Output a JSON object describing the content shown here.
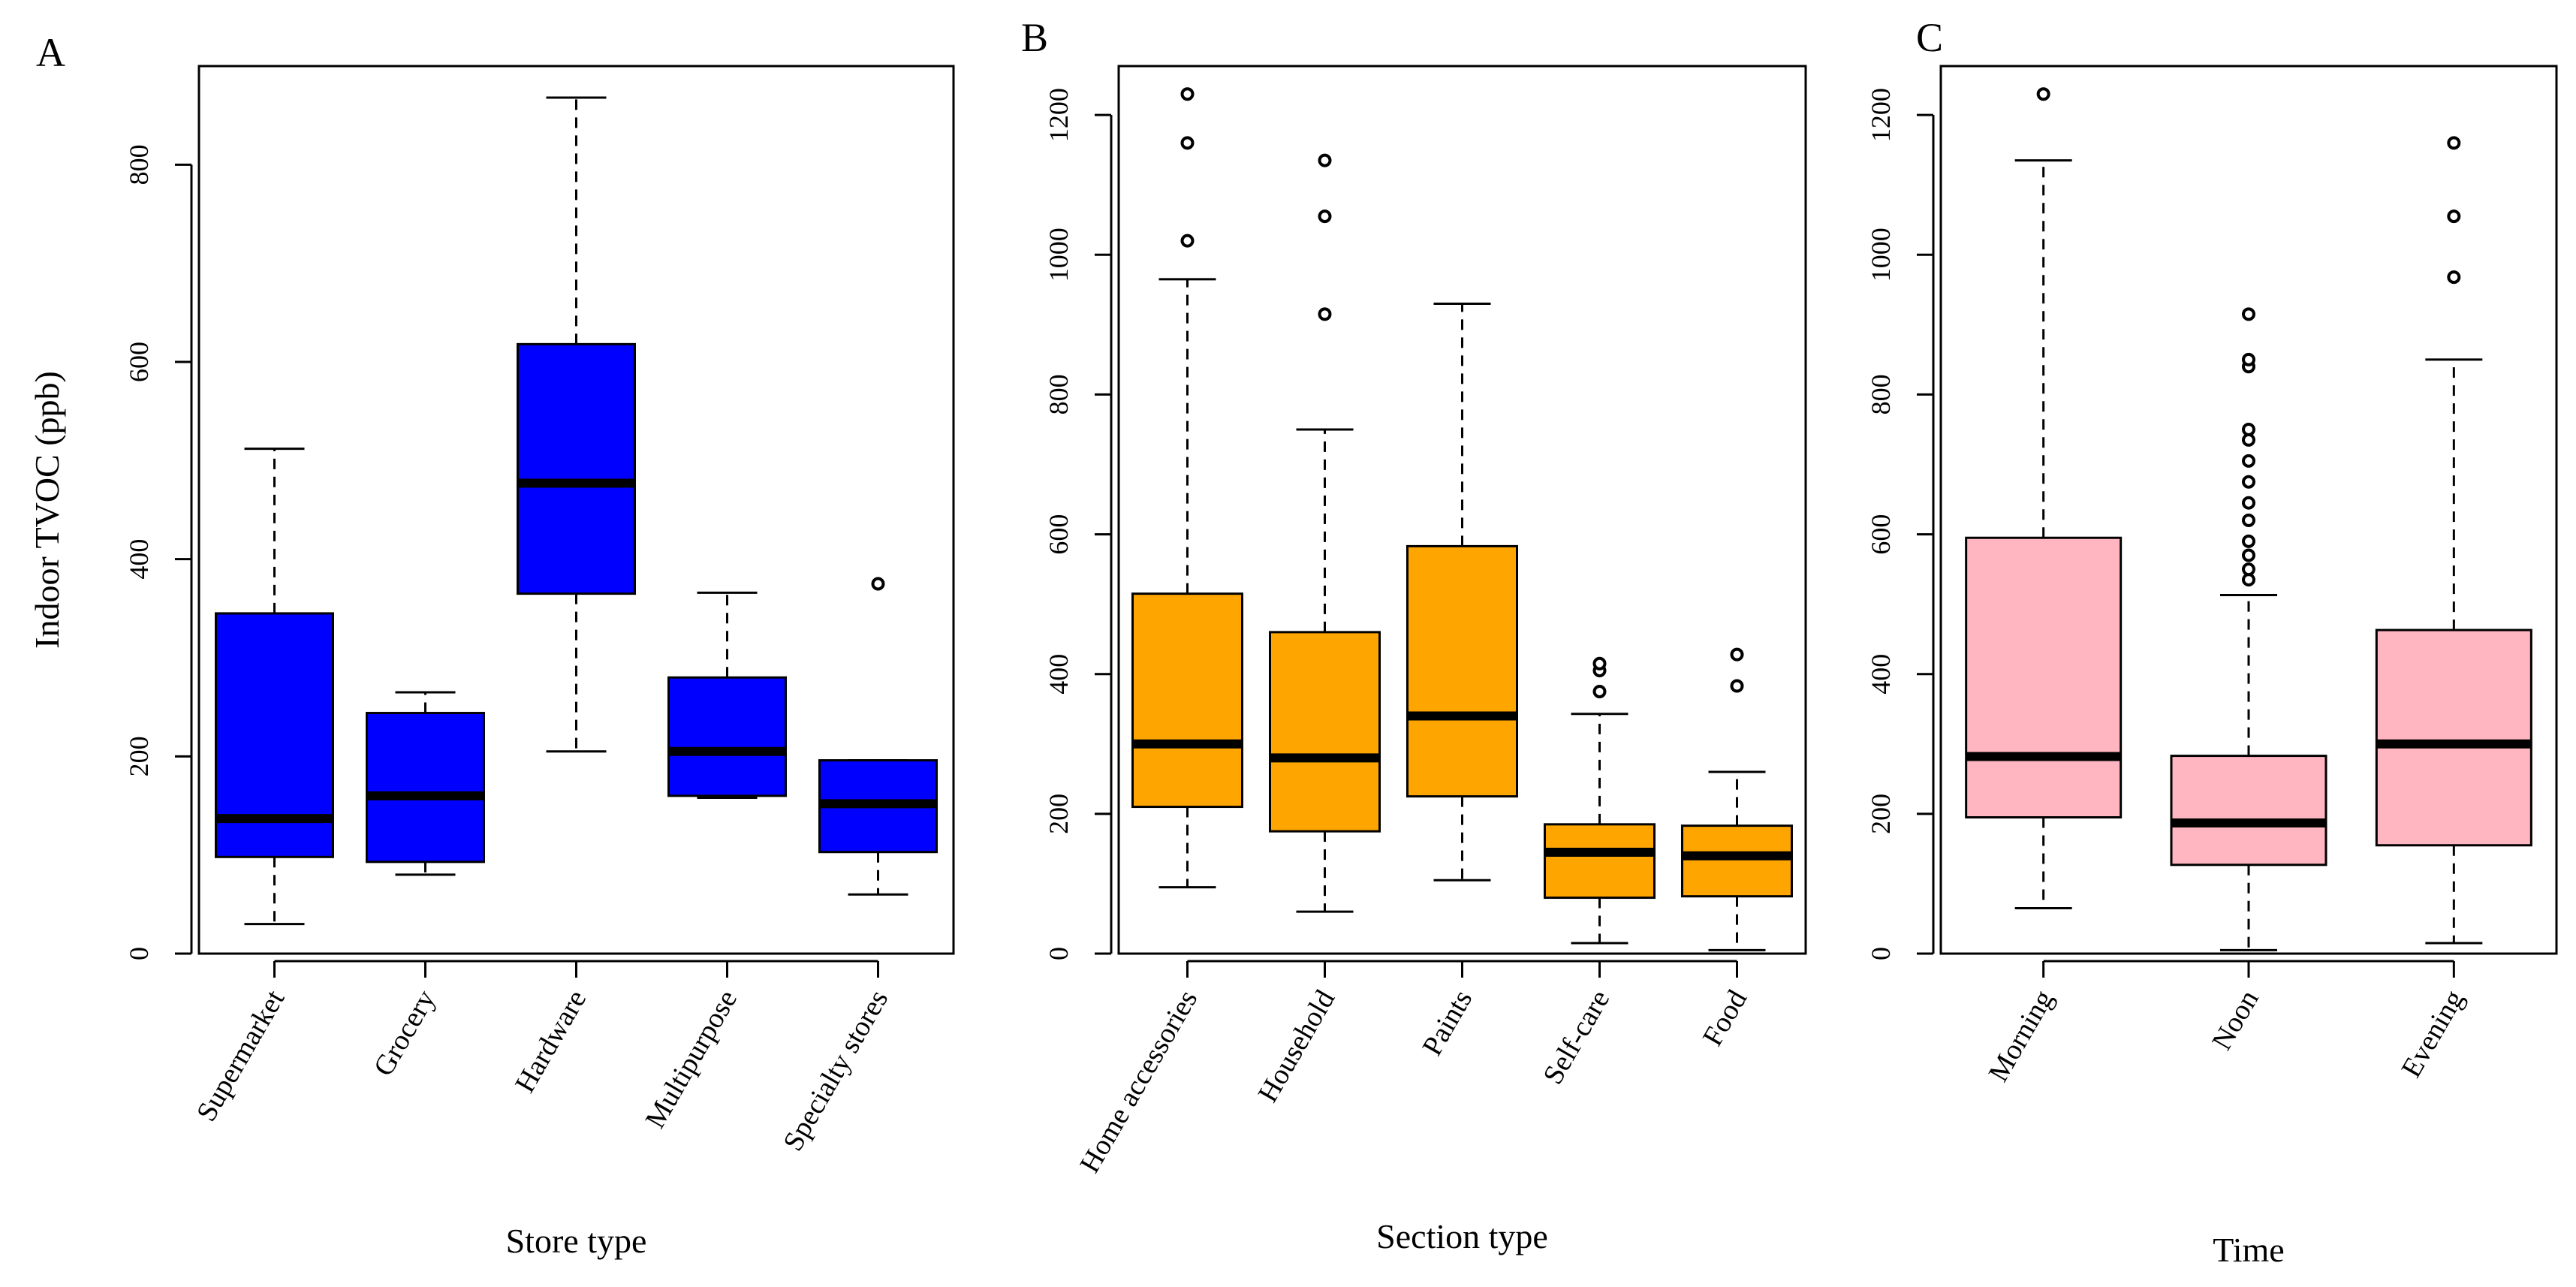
{
  "chart_data": [
    {
      "type": "boxplot",
      "panel": "A",
      "title": "",
      "xlabel": "Store type",
      "ylabel": "Indoor TVOC (ppb)",
      "ylim": [
        0,
        900
      ],
      "yticks": [
        0,
        200,
        400,
        600,
        800
      ],
      "fill": "#0000FF",
      "categories": [
        "Supermarket",
        "Grocery",
        "Hardware",
        "Multipurpose",
        "Specialty stores"
      ],
      "boxes": [
        {
          "min": 30,
          "q1": 98,
          "median": 137,
          "q3": 345,
          "max": 512,
          "outliers": []
        },
        {
          "min": 80,
          "q1": 93,
          "median": 160,
          "q3": 244,
          "max": 265,
          "outliers": []
        },
        {
          "min": 205,
          "q1": 365,
          "median": 477,
          "q3": 618,
          "max": 868,
          "outliers": []
        },
        {
          "min": 158,
          "q1": 160,
          "median": 205,
          "q3": 280,
          "max": 366,
          "outliers": []
        },
        {
          "min": 60,
          "q1": 103,
          "median": 152,
          "q3": 196,
          "max": 196,
          "outliers": [
            375
          ]
        }
      ]
    },
    {
      "type": "boxplot",
      "panel": "B",
      "title": "",
      "xlabel": "Section type",
      "ylabel": "",
      "ylim": [
        0,
        1270
      ],
      "yticks": [
        0,
        200,
        400,
        600,
        800,
        1000,
        1200
      ],
      "fill": "#FFA500",
      "categories": [
        "Home accessories",
        "Household",
        "Paints",
        "Self-care",
        "Food"
      ],
      "boxes": [
        {
          "min": 95,
          "q1": 210,
          "median": 300,
          "q3": 515,
          "max": 965,
          "outliers": [
            1020,
            1160,
            1230
          ]
        },
        {
          "min": 60,
          "q1": 175,
          "median": 280,
          "q3": 460,
          "max": 750,
          "outliers": [
            915,
            1055,
            1135
          ]
        },
        {
          "min": 105,
          "q1": 225,
          "median": 340,
          "q3": 583,
          "max": 930,
          "outliers": []
        },
        {
          "min": 15,
          "q1": 80,
          "median": 145,
          "q3": 185,
          "max": 343,
          "outliers": [
            375,
            405,
            415
          ]
        },
        {
          "min": 5,
          "q1": 82,
          "median": 140,
          "q3": 183,
          "max": 260,
          "outliers": [
            383,
            428
          ]
        }
      ]
    },
    {
      "type": "boxplot",
      "panel": "C",
      "title": "",
      "xlabel": "Time",
      "ylabel": "",
      "ylim": [
        0,
        1270
      ],
      "yticks": [
        0,
        200,
        400,
        600,
        800,
        1000,
        1200
      ],
      "fill": "#FFB6C1",
      "categories": [
        "Morning",
        "Noon",
        "Evening"
      ],
      "boxes": [
        {
          "min": 65,
          "q1": 195,
          "median": 282,
          "q3": 595,
          "max": 1135,
          "outliers": [
            1230
          ]
        },
        {
          "min": 5,
          "q1": 127,
          "median": 187,
          "q3": 283,
          "max": 513,
          "outliers": [
            535,
            550,
            570,
            590,
            620,
            645,
            675,
            705,
            735,
            750,
            840,
            850,
            915
          ]
        },
        {
          "min": 15,
          "q1": 155,
          "median": 300,
          "q3": 463,
          "max": 850,
          "outliers": [
            968,
            1055,
            1160
          ]
        }
      ]
    }
  ]
}
